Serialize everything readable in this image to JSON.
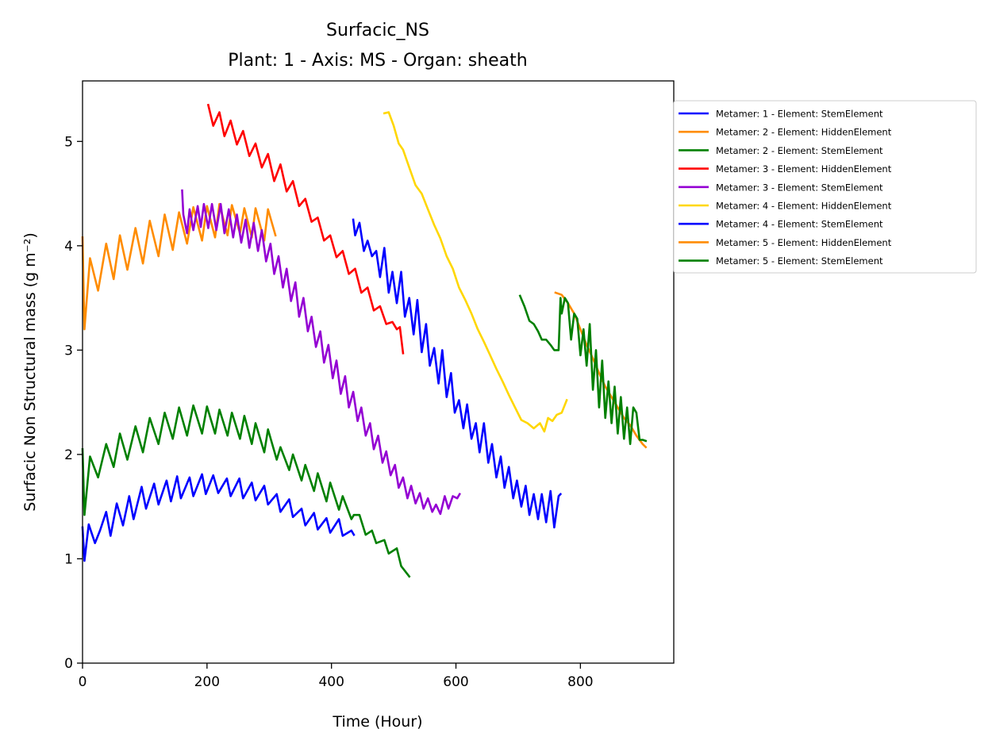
{
  "chart_data": {
    "type": "line",
    "title": "Surfacic_NS",
    "subtitle": "Plant: 1 - Axis: MS - Organ: sheath",
    "xlabel": "Time (Hour)",
    "ylabel": "Surfacic Non Structural mass (g m⁻²)",
    "xlim": [
      0,
      950
    ],
    "ylim": [
      0,
      5.58
    ],
    "xticks": [
      "0",
      "200",
      "400",
      "600",
      "800"
    ],
    "xtick_values": [
      0,
      200,
      400,
      600,
      800
    ],
    "yticks": [
      "0",
      "1",
      "2",
      "3",
      "4",
      "5"
    ],
    "ytick_values": [
      0,
      1,
      2,
      3,
      4,
      5
    ],
    "grid": false,
    "legend_position": "outside-right",
    "series": [
      {
        "name": "Metamer: 1 - Element: StemElement",
        "color": "#0000ff",
        "x": [
          0,
          3,
          10,
          20,
          28,
          38,
          45,
          55,
          65,
          75,
          82,
          95,
          102,
          115,
          122,
          135,
          142,
          152,
          158,
          172,
          178,
          192,
          198,
          210,
          218,
          232,
          238,
          252,
          258,
          272,
          278,
          292,
          298,
          312,
          318,
          332,
          338,
          352,
          358,
          372,
          378,
          392,
          398,
          412,
          418,
          432,
          436
        ],
        "y": [
          1.3,
          0.98,
          1.33,
          1.15,
          1.27,
          1.45,
          1.22,
          1.53,
          1.32,
          1.6,
          1.38,
          1.69,
          1.48,
          1.72,
          1.52,
          1.75,
          1.55,
          1.79,
          1.58,
          1.78,
          1.6,
          1.81,
          1.62,
          1.8,
          1.63,
          1.77,
          1.6,
          1.77,
          1.58,
          1.73,
          1.56,
          1.7,
          1.52,
          1.62,
          1.45,
          1.57,
          1.4,
          1.48,
          1.32,
          1.44,
          1.28,
          1.39,
          1.25,
          1.38,
          1.22,
          1.27,
          1.23
        ]
      },
      {
        "name": "Metamer: 2 - Element: HiddenElement",
        "color": "#ff8c00",
        "x": [
          0,
          3,
          12,
          25,
          38,
          50,
          60,
          72,
          85,
          97,
          108,
          122,
          132,
          145,
          155,
          168,
          178,
          192,
          200,
          213,
          220,
          233,
          240,
          253,
          260,
          272,
          278,
          292,
          298,
          310
        ],
        "y": [
          4.08,
          3.2,
          3.88,
          3.57,
          4.02,
          3.68,
          4.1,
          3.77,
          4.17,
          3.83,
          4.24,
          3.9,
          4.3,
          3.96,
          4.32,
          4.02,
          4.37,
          4.05,
          4.38,
          4.08,
          4.4,
          4.1,
          4.39,
          4.12,
          4.36,
          4.08,
          4.36,
          4.05,
          4.35,
          4.1
        ]
      },
      {
        "name": "Metamer: 2 - Element: StemElement",
        "color": "#008000",
        "x": [
          0,
          3,
          12,
          25,
          38,
          50,
          60,
          72,
          85,
          97,
          108,
          122,
          132,
          145,
          155,
          168,
          178,
          192,
          200,
          213,
          220,
          233,
          240,
          253,
          260,
          272,
          278,
          292,
          298,
          312,
          318,
          332,
          338,
          352,
          358,
          372,
          378,
          392,
          398,
          412,
          418,
          432,
          436,
          445,
          455,
          465,
          472,
          485,
          492,
          505,
          512,
          525
        ],
        "y": [
          2.05,
          1.42,
          1.98,
          1.78,
          2.1,
          1.88,
          2.2,
          1.95,
          2.27,
          2.02,
          2.35,
          2.1,
          2.4,
          2.15,
          2.45,
          2.18,
          2.47,
          2.2,
          2.46,
          2.2,
          2.43,
          2.18,
          2.4,
          2.15,
          2.37,
          2.1,
          2.3,
          2.02,
          2.24,
          1.95,
          2.07,
          1.85,
          2.0,
          1.75,
          1.9,
          1.65,
          1.82,
          1.55,
          1.73,
          1.47,
          1.6,
          1.38,
          1.42,
          1.42,
          1.23,
          1.27,
          1.15,
          1.18,
          1.05,
          1.1,
          0.93,
          0.83
        ]
      },
      {
        "name": "Metamer: 3 - Element: HiddenElement",
        "color": "#ff0000",
        "x": [
          202,
          210,
          220,
          228,
          238,
          248,
          258,
          268,
          278,
          288,
          298,
          308,
          318,
          328,
          338,
          348,
          358,
          368,
          378,
          388,
          398,
          408,
          418,
          428,
          438,
          448,
          458,
          468,
          478,
          488,
          498,
          505,
          510,
          515
        ],
        "y": [
          5.35,
          5.15,
          5.28,
          5.05,
          5.2,
          4.97,
          5.1,
          4.86,
          4.98,
          4.75,
          4.88,
          4.62,
          4.78,
          4.52,
          4.62,
          4.38,
          4.45,
          4.23,
          4.27,
          4.05,
          4.1,
          3.89,
          3.95,
          3.73,
          3.78,
          3.55,
          3.6,
          3.38,
          3.42,
          3.25,
          3.27,
          3.2,
          3.22,
          2.97
        ]
      },
      {
        "name": "Metamer: 3 - Element: StemElement",
        "color": "#9400d3",
        "x": [
          160,
          162,
          168,
          172,
          178,
          185,
          190,
          195,
          202,
          208,
          215,
          222,
          228,
          235,
          242,
          248,
          255,
          262,
          268,
          275,
          282,
          288,
          295,
          302,
          308,
          315,
          322,
          328,
          335,
          342,
          348,
          355,
          362,
          368,
          375,
          382,
          388,
          395,
          402,
          408,
          415,
          422,
          428,
          435,
          442,
          448,
          455,
          462,
          468,
          475,
          482,
          488,
          495,
          502,
          508,
          515,
          522,
          528,
          535,
          542,
          548,
          555,
          562,
          568,
          575,
          582,
          588,
          595,
          602,
          606
        ],
        "y": [
          4.53,
          4.3,
          4.12,
          4.35,
          4.15,
          4.38,
          4.18,
          4.4,
          4.17,
          4.4,
          4.15,
          4.4,
          4.12,
          4.35,
          4.08,
          4.3,
          4.03,
          4.25,
          3.98,
          4.22,
          3.95,
          4.15,
          3.85,
          4.02,
          3.73,
          3.9,
          3.6,
          3.78,
          3.47,
          3.65,
          3.32,
          3.5,
          3.18,
          3.32,
          3.03,
          3.18,
          2.88,
          3.05,
          2.73,
          2.9,
          2.58,
          2.75,
          2.45,
          2.6,
          2.32,
          2.45,
          2.18,
          2.3,
          2.05,
          2.18,
          1.92,
          2.03,
          1.8,
          1.9,
          1.68,
          1.78,
          1.58,
          1.7,
          1.53,
          1.63,
          1.48,
          1.58,
          1.45,
          1.52,
          1.43,
          1.6,
          1.48,
          1.6,
          1.58,
          1.62
        ]
      },
      {
        "name": "Metamer: 4 - Element: HiddenElement",
        "color": "#ffd700",
        "x": [
          485,
          492,
          500,
          508,
          515,
          525,
          535,
          545,
          555,
          565,
          575,
          585,
          595,
          605,
          615,
          625,
          635,
          645,
          655,
          665,
          675,
          685,
          695,
          705,
          715,
          725,
          735,
          742,
          748,
          755,
          762,
          770,
          778
        ],
        "y": [
          5.27,
          5.28,
          5.15,
          4.98,
          4.92,
          4.75,
          4.58,
          4.5,
          4.35,
          4.2,
          4.07,
          3.9,
          3.78,
          3.6,
          3.48,
          3.35,
          3.2,
          3.08,
          2.95,
          2.82,
          2.7,
          2.57,
          2.45,
          2.33,
          2.3,
          2.25,
          2.3,
          2.22,
          2.35,
          2.32,
          2.38,
          2.4,
          2.52
        ]
      },
      {
        "name": "Metamer: 4 - Element: StemElement",
        "color": "#0000ff",
        "x": [
          435,
          438,
          445,
          452,
          458,
          465,
          472,
          478,
          485,
          492,
          498,
          505,
          512,
          518,
          525,
          532,
          538,
          545,
          552,
          558,
          565,
          572,
          578,
          585,
          592,
          598,
          605,
          612,
          618,
          625,
          632,
          638,
          645,
          652,
          658,
          665,
          672,
          678,
          685,
          692,
          698,
          705,
          712,
          718,
          725,
          732,
          738,
          745,
          752,
          758,
          765,
          768
        ],
        "y": [
          4.25,
          4.1,
          4.22,
          3.95,
          4.05,
          3.9,
          3.95,
          3.7,
          3.98,
          3.55,
          3.75,
          3.45,
          3.75,
          3.32,
          3.5,
          3.15,
          3.48,
          2.98,
          3.25,
          2.85,
          3.02,
          2.68,
          3.0,
          2.55,
          2.78,
          2.4,
          2.52,
          2.25,
          2.48,
          2.15,
          2.3,
          2.02,
          2.3,
          1.92,
          2.1,
          1.78,
          1.98,
          1.68,
          1.88,
          1.58,
          1.75,
          1.5,
          1.7,
          1.42,
          1.62,
          1.38,
          1.62,
          1.35,
          1.65,
          1.3,
          1.6,
          1.62
        ]
      },
      {
        "name": "Metamer: 5 - Element: HiddenElement",
        "color": "#ff8c00",
        "x": [
          760,
          770,
          780,
          790,
          800,
          810,
          820,
          830,
          840,
          850,
          860,
          870,
          880,
          890,
          900,
          905
        ],
        "y": [
          3.55,
          3.53,
          3.45,
          3.35,
          3.2,
          3.05,
          2.92,
          2.78,
          2.65,
          2.55,
          2.45,
          2.35,
          2.28,
          2.18,
          2.1,
          2.07
        ]
      },
      {
        "name": "Metamer: 5 - Element: StemElement",
        "color": "#008000",
        "x": [
          703,
          710,
          718,
          725,
          732,
          738,
          745,
          752,
          758,
          765,
          768,
          770,
          775,
          780,
          785,
          790,
          795,
          800,
          805,
          810,
          815,
          820,
          825,
          830,
          835,
          840,
          845,
          850,
          855,
          860,
          865,
          870,
          875,
          880,
          885,
          890,
          895,
          900,
          905
        ],
        "y": [
          3.52,
          3.42,
          3.28,
          3.25,
          3.18,
          3.1,
          3.1,
          3.05,
          3.0,
          3.0,
          3.5,
          3.35,
          3.5,
          3.45,
          3.1,
          3.35,
          3.3,
          2.95,
          3.2,
          2.85,
          3.25,
          2.62,
          3.0,
          2.45,
          2.9,
          2.35,
          2.7,
          2.3,
          2.65,
          2.2,
          2.55,
          2.15,
          2.45,
          2.1,
          2.45,
          2.4,
          2.14,
          2.14,
          2.13
        ]
      }
    ]
  }
}
